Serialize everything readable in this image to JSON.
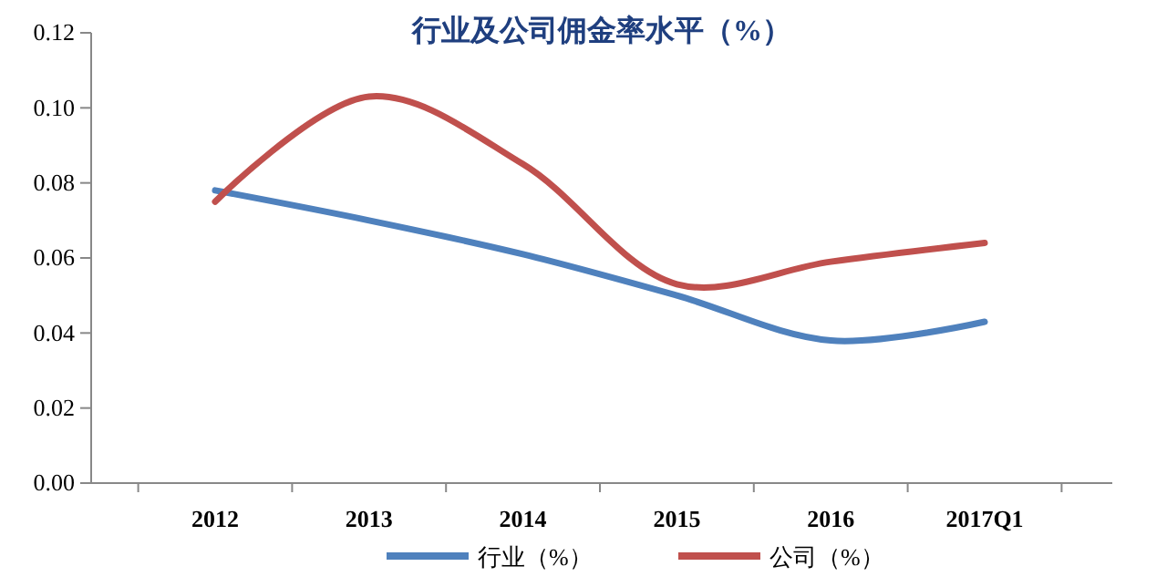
{
  "chart_data": {
    "type": "line",
    "title": "行业及公司佣金率水平（%）",
    "categories": [
      "2012",
      "2013",
      "2014",
      "2015",
      "2016",
      "2017Q1"
    ],
    "series": [
      {
        "name": "行业（%）",
        "color": "#4f81bd",
        "values": [
          0.078,
          0.07,
          0.061,
          0.05,
          0.038,
          0.043
        ]
      },
      {
        "name": "公司（%）",
        "color": "#c0504d",
        "values": [
          0.075,
          0.103,
          0.085,
          0.053,
          0.059,
          0.064
        ]
      }
    ],
    "ylim": [
      0,
      0.12
    ],
    "yticks": [
      {
        "value": 0,
        "label": "0.00"
      },
      {
        "value": 0.02,
        "label": "0.02"
      },
      {
        "value": 0.04,
        "label": "0.04"
      },
      {
        "value": 0.06,
        "label": "0.06"
      },
      {
        "value": 0.08,
        "label": "0.08"
      },
      {
        "value": 0.1,
        "label": "0.10"
      },
      {
        "value": 0.12,
        "label": "0.12"
      }
    ],
    "legend": "bottom",
    "grid": false,
    "marker": "none",
    "line_style": "solid"
  }
}
